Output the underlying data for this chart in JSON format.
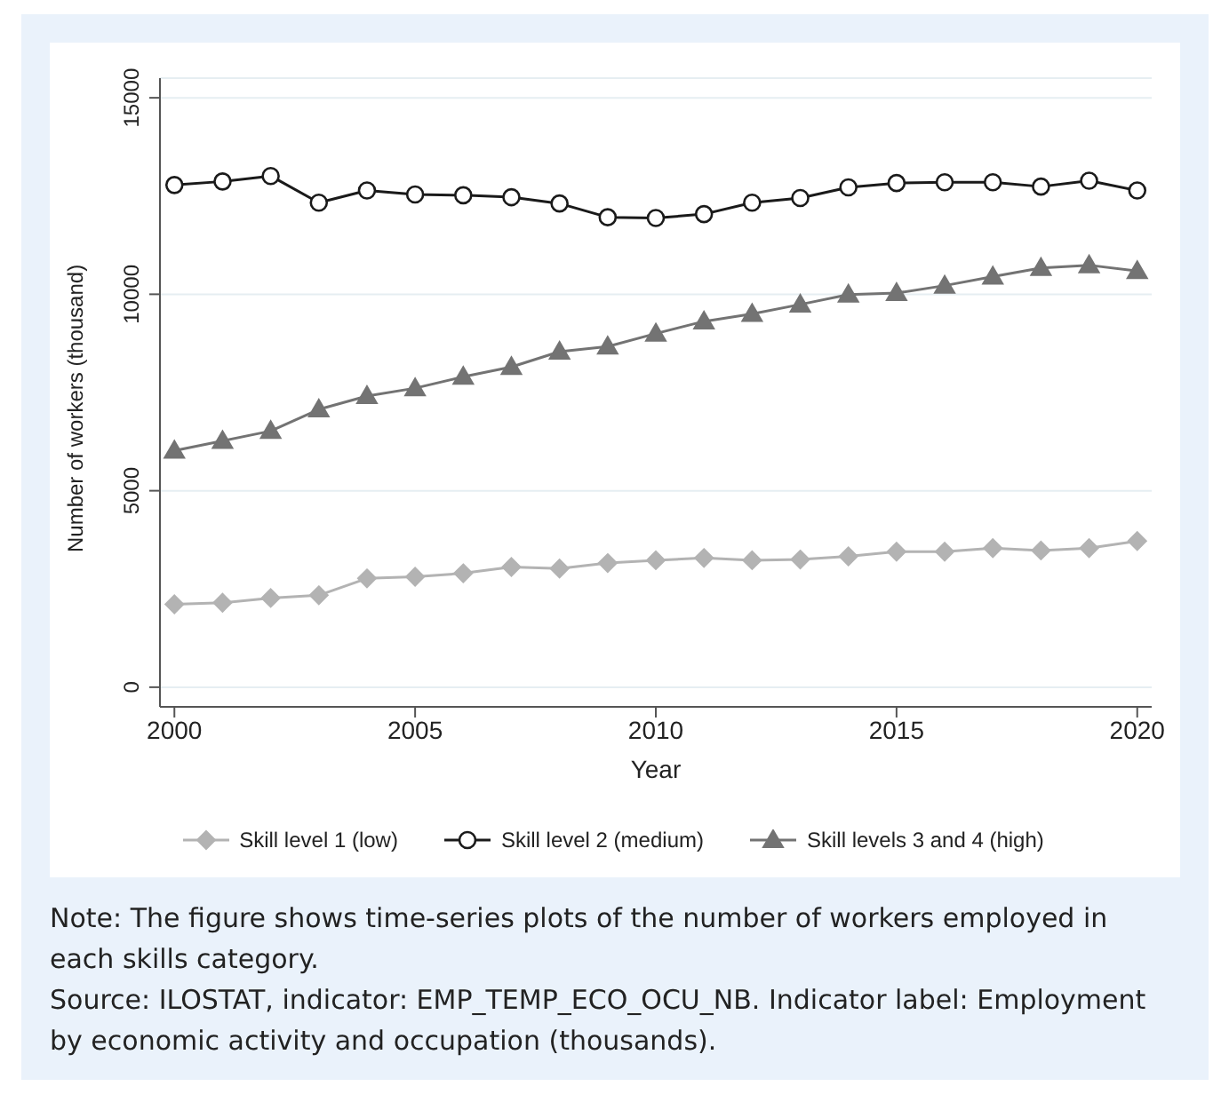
{
  "chart_data": {
    "type": "line",
    "xlabel": "Year",
    "ylabel": "Number of workers (thousand)",
    "x": [
      2000,
      2001,
      2002,
      2003,
      2004,
      2005,
      2006,
      2007,
      2008,
      2009,
      2010,
      2011,
      2012,
      2013,
      2014,
      2015,
      2016,
      2017,
      2018,
      2019,
      2020
    ],
    "series": [
      {
        "name": "Skill level 1 (low)",
        "color": "#b3b3b3",
        "marker": "diamond",
        "values": [
          2110,
          2150,
          2270,
          2340,
          2770,
          2810,
          2900,
          3060,
          3020,
          3160,
          3230,
          3290,
          3230,
          3250,
          3330,
          3450,
          3450,
          3540,
          3480,
          3540,
          3720
        ]
      },
      {
        "name": "Skill level 2 (medium)",
        "color": "#1a1a1a",
        "marker": "circle",
        "values": [
          12780,
          12870,
          13010,
          12330,
          12640,
          12540,
          12520,
          12470,
          12310,
          11960,
          11940,
          12040,
          12330,
          12450,
          12720,
          12830,
          12850,
          12850,
          12740,
          12890,
          12640
        ]
      },
      {
        "name": "Skill levels 3 and 4 (high)",
        "color": "#737373",
        "marker": "triangle",
        "values": [
          6020,
          6270,
          6520,
          7070,
          7410,
          7610,
          7900,
          8150,
          8540,
          8670,
          9000,
          9310,
          9500,
          9740,
          9990,
          10030,
          10220,
          10450,
          10670,
          10740,
          10590
        ]
      }
    ],
    "xlim": [
      1999.7,
      2020.3
    ],
    "xticks": [
      2000,
      2005,
      2010,
      2015,
      2020
    ],
    "ylim": [
      -500,
      15500
    ],
    "yticks": [
      0,
      5000,
      10000,
      15000
    ],
    "grid": "y",
    "legend": "bottom",
    "line_style": "solid",
    "annotations": [
      "Note: The figure shows time-series plots of the number of workers employed in each skills category.",
      "Source: ILOSTAT, indicator: EMP_TEMP_ECO_OCU_NB. Indicator label: Employment by economic activity and occupation (thousands)."
    ]
  }
}
